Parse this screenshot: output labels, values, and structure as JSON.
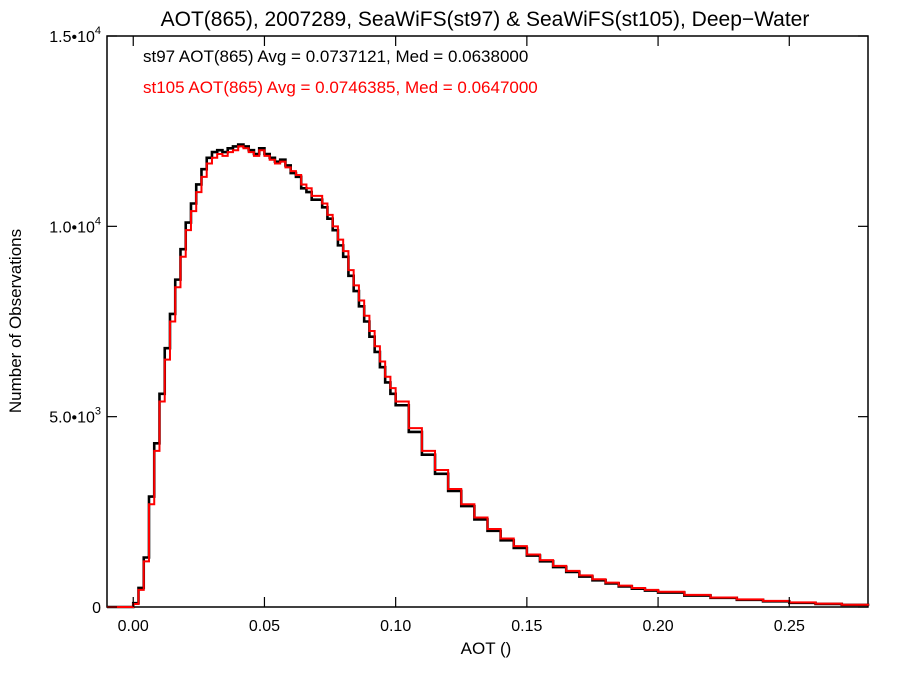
{
  "chart_data": {
    "type": "line",
    "title": "AOT(865), 2007289, SeaWiFS(st97) & SeaWiFS(st105), Deep−Water",
    "xlabel": "AOT ()",
    "ylabel": "Number of Observations",
    "xlim": [
      -0.01,
      0.28
    ],
    "ylim": [
      0,
      15000
    ],
    "x_ticks": [
      0.0,
      0.05,
      0.1,
      0.15,
      0.2,
      0.25
    ],
    "x_tick_labels": [
      "0.00",
      "0.05",
      "0.10",
      "0.15",
      "0.20",
      "0.25"
    ],
    "y_ticks": [
      {
        "value": 0,
        "mantissa": "0",
        "exponent": ""
      },
      {
        "value": 5000,
        "mantissa": "5.0•10",
        "exponent": "3"
      },
      {
        "value": 10000,
        "mantissa": "1.0•10",
        "exponent": "4"
      },
      {
        "value": 15000,
        "mantissa": "1.5•10",
        "exponent": "4"
      }
    ],
    "grid": false,
    "legend_placement": "top-left",
    "series": [
      {
        "label": "st97 AOT(865) Avg = 0.0737121, Med = 0.0638000",
        "color": "#000000",
        "x": [
          -0.01,
          0.0,
          0.002,
          0.004,
          0.006,
          0.008,
          0.01,
          0.012,
          0.014,
          0.016,
          0.018,
          0.02,
          0.022,
          0.024,
          0.026,
          0.028,
          0.03,
          0.032,
          0.034,
          0.036,
          0.038,
          0.04,
          0.042,
          0.044,
          0.046,
          0.048,
          0.05,
          0.052,
          0.054,
          0.056,
          0.058,
          0.06,
          0.062,
          0.064,
          0.066,
          0.068,
          0.07,
          0.072,
          0.074,
          0.076,
          0.078,
          0.08,
          0.082,
          0.084,
          0.086,
          0.088,
          0.09,
          0.092,
          0.094,
          0.096,
          0.098,
          0.1,
          0.105,
          0.11,
          0.115,
          0.12,
          0.125,
          0.13,
          0.135,
          0.14,
          0.145,
          0.15,
          0.155,
          0.16,
          0.165,
          0.17,
          0.175,
          0.18,
          0.185,
          0.19,
          0.195,
          0.2,
          0.21,
          0.22,
          0.23,
          0.24,
          0.25,
          0.26,
          0.27,
          0.28
        ],
        "y": [
          0,
          100,
          500,
          1300,
          2900,
          4300,
          5600,
          6800,
          7700,
          8600,
          9400,
          10100,
          10600,
          11100,
          11500,
          11800,
          11950,
          12000,
          11950,
          12050,
          12100,
          12150,
          12100,
          12000,
          11900,
          12050,
          11900,
          11800,
          11700,
          11750,
          11600,
          11400,
          11300,
          11000,
          10900,
          10700,
          10700,
          10500,
          10200,
          9900,
          9500,
          9200,
          8700,
          8300,
          7900,
          7500,
          7100,
          6700,
          6300,
          5900,
          5600,
          5300,
          4600,
          4000,
          3500,
          3050,
          2650,
          2300,
          2000,
          1750,
          1550,
          1350,
          1200,
          1050,
          920,
          800,
          700,
          620,
          540,
          480,
          430,
          380,
          300,
          240,
          190,
          150,
          110,
          80,
          55,
          30
        ]
      },
      {
        "label": "st105 AOT(865) Avg = 0.0746385, Med = 0.0647000",
        "color": "#ff0000",
        "x": [
          -0.01,
          0.0,
          0.002,
          0.004,
          0.006,
          0.008,
          0.01,
          0.012,
          0.014,
          0.016,
          0.018,
          0.02,
          0.022,
          0.024,
          0.026,
          0.028,
          0.03,
          0.032,
          0.034,
          0.036,
          0.038,
          0.04,
          0.042,
          0.044,
          0.046,
          0.048,
          0.05,
          0.052,
          0.054,
          0.056,
          0.058,
          0.06,
          0.062,
          0.064,
          0.066,
          0.068,
          0.07,
          0.072,
          0.074,
          0.076,
          0.078,
          0.08,
          0.082,
          0.084,
          0.086,
          0.088,
          0.09,
          0.092,
          0.094,
          0.096,
          0.098,
          0.1,
          0.105,
          0.11,
          0.115,
          0.12,
          0.125,
          0.13,
          0.135,
          0.14,
          0.145,
          0.15,
          0.155,
          0.16,
          0.165,
          0.17,
          0.175,
          0.18,
          0.185,
          0.19,
          0.195,
          0.2,
          0.21,
          0.22,
          0.23,
          0.24,
          0.25,
          0.26,
          0.27,
          0.28
        ],
        "y": [
          0,
          80,
          450,
          1200,
          2700,
          4100,
          5400,
          6500,
          7500,
          8400,
          9200,
          9900,
          10400,
          10900,
          11300,
          11650,
          11800,
          11900,
          11850,
          11950,
          12000,
          12100,
          12050,
          11950,
          11850,
          12000,
          11850,
          11750,
          11650,
          11700,
          11550,
          11450,
          11350,
          11100,
          11000,
          10800,
          10800,
          10600,
          10300,
          10000,
          9650,
          9350,
          8850,
          8450,
          8050,
          7650,
          7250,
          6850,
          6450,
          6050,
          5750,
          5400,
          4700,
          4100,
          3600,
          3100,
          2700,
          2350,
          2050,
          1800,
          1600,
          1380,
          1230,
          1080,
          950,
          830,
          730,
          640,
          560,
          500,
          450,
          400,
          320,
          250,
          200,
          160,
          120,
          90,
          60,
          35
        ]
      }
    ]
  }
}
